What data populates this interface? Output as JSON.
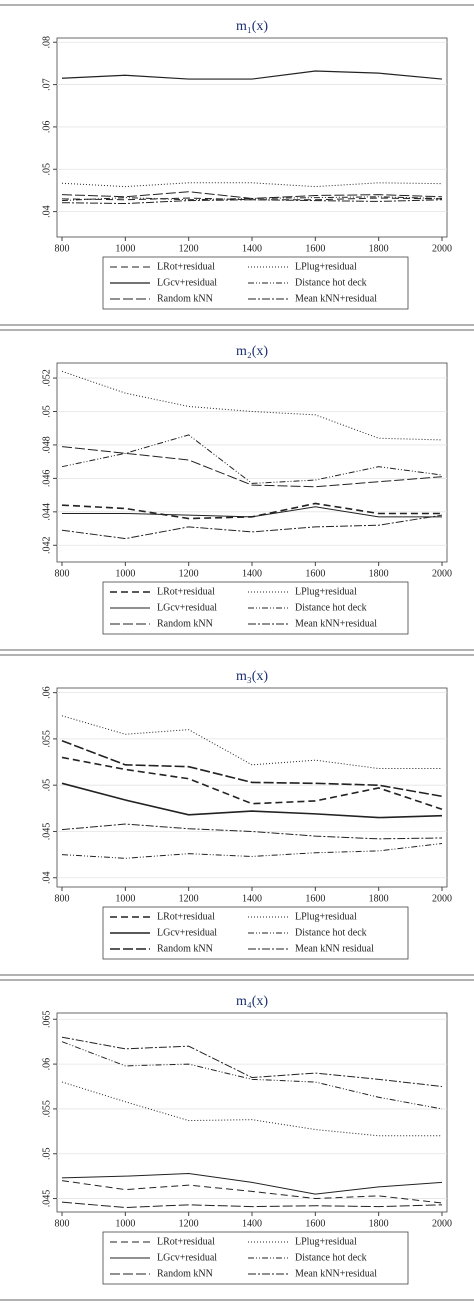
{
  "chart_data": [
    {
      "type": "line",
      "title": "m₁(x)",
      "x": [
        800,
        1000,
        1200,
        1400,
        1600,
        1800,
        2000
      ],
      "xlim": [
        800,
        2000
      ],
      "xticks": [
        800,
        1000,
        1200,
        1400,
        1600,
        1800,
        2000
      ],
      "ylim": [
        0.034,
        0.081
      ],
      "yticks": [
        {
          "value": 0.04,
          "label": ".04"
        },
        {
          "value": 0.05,
          "label": ".05"
        },
        {
          "value": 0.06,
          "label": ".06"
        },
        {
          "value": 0.07,
          "label": ".07"
        },
        {
          "value": 0.08,
          "label": ".08"
        }
      ],
      "grid": true,
      "series": [
        {
          "name": "LRot+residual",
          "color": "#222",
          "dash": "7,4",
          "width": 1,
          "values": [
            0.043,
            0.0428,
            0.0432,
            0.0428,
            0.0428,
            0.0432,
            0.043
          ]
        },
        {
          "name": "LPlug+residual",
          "color": "#222",
          "dash": "1,2",
          "width": 1,
          "values": [
            0.0467,
            0.0459,
            0.0468,
            0.0468,
            0.0459,
            0.0468,
            0.0466
          ]
        },
        {
          "name": "LGcv+residual",
          "color": "#222",
          "dash": "",
          "width": 1.2,
          "values": [
            0.0715,
            0.0722,
            0.0713,
            0.0713,
            0.0732,
            0.0727,
            0.0713
          ]
        },
        {
          "name": "Distance hot deck",
          "color": "#222",
          "dash": "6,2,1,2,1,2",
          "width": 1,
          "values": [
            0.0426,
            0.0433,
            0.0428,
            0.0431,
            0.0433,
            0.0435,
            0.0431
          ]
        },
        {
          "name": "Random kNN",
          "color": "#222",
          "dash": "10,3",
          "width": 1,
          "values": [
            0.044,
            0.0435,
            0.0447,
            0.0431,
            0.0438,
            0.044,
            0.0435
          ]
        },
        {
          "name": "Mean kNN+residual",
          "color": "#222",
          "dash": "8,2,2,2",
          "width": 1,
          "values": [
            0.0421,
            0.0419,
            0.0426,
            0.0428,
            0.0426,
            0.0424,
            0.0428
          ]
        }
      ]
    },
    {
      "type": "line",
      "title": "m₂(x)",
      "x": [
        800,
        1000,
        1200,
        1400,
        1600,
        1800,
        2000
      ],
      "xlim": [
        800,
        2000
      ],
      "xticks": [
        800,
        1000,
        1200,
        1400,
        1600,
        1800,
        2000
      ],
      "ylim": [
        0.041,
        0.0529
      ],
      "yticks": [
        {
          "value": 0.042,
          "label": ".042"
        },
        {
          "value": 0.044,
          "label": ".044"
        },
        {
          "value": 0.046,
          "label": ".046"
        },
        {
          "value": 0.048,
          "label": ".048"
        },
        {
          "value": 0.05,
          "label": ".05"
        },
        {
          "value": 0.052,
          "label": ".052"
        }
      ],
      "grid": true,
      "series": [
        {
          "name": "LRot+residual",
          "color": "#222",
          "dash": "7,4",
          "width": 1.6,
          "values": [
            0.0444,
            0.0442,
            0.0436,
            0.0437,
            0.0445,
            0.0439,
            0.0439
          ]
        },
        {
          "name": "LPlug+residual",
          "color": "#222",
          "dash": "1,2",
          "width": 1,
          "values": [
            0.0524,
            0.0511,
            0.0503,
            0.05,
            0.0498,
            0.0484,
            0.0483
          ]
        },
        {
          "name": "LGcv+residual",
          "color": "#222",
          "dash": "",
          "width": 1,
          "values": [
            0.0439,
            0.0439,
            0.0438,
            0.0437,
            0.0443,
            0.0437,
            0.0437
          ]
        },
        {
          "name": "Distance hot deck",
          "color": "#222",
          "dash": "6,2,1,2,1,2",
          "width": 1,
          "values": [
            0.0467,
            0.0475,
            0.0486,
            0.0457,
            0.0459,
            0.0467,
            0.0462
          ]
        },
        {
          "name": "Random kNN",
          "color": "#222",
          "dash": "10,3",
          "width": 1,
          "values": [
            0.0479,
            0.0475,
            0.0471,
            0.0456,
            0.0455,
            0.0458,
            0.0461
          ]
        },
        {
          "name": "Mean kNN+residual",
          "color": "#222",
          "dash": "8,2,2,2",
          "width": 1,
          "values": [
            0.0429,
            0.0424,
            0.0431,
            0.0428,
            0.0431,
            0.0432,
            0.0438
          ]
        }
      ]
    },
    {
      "type": "line",
      "title": "m₃(x)",
      "x": [
        800,
        1000,
        1200,
        1400,
        1600,
        1800,
        2000
      ],
      "xlim": [
        800,
        2000
      ],
      "xticks": [
        800,
        1000,
        1200,
        1400,
        1600,
        1800,
        2000
      ],
      "ylim": [
        0.039,
        0.0605
      ],
      "yticks": [
        {
          "value": 0.04,
          "label": ".04"
        },
        {
          "value": 0.045,
          "label": ".045"
        },
        {
          "value": 0.05,
          "label": ".05"
        },
        {
          "value": 0.055,
          "label": ".055"
        },
        {
          "value": 0.06,
          "label": ".06"
        }
      ],
      "grid": true,
      "series": [
        {
          "name": "LRot+residual",
          "color": "#222",
          "dash": "7,4",
          "width": 1.6,
          "values": [
            0.053,
            0.0517,
            0.0507,
            0.048,
            0.0483,
            0.0497,
            0.0474
          ]
        },
        {
          "name": "LPlug+residual",
          "color": "#222",
          "dash": "1,2",
          "width": 1,
          "values": [
            0.0575,
            0.0555,
            0.056,
            0.0522,
            0.0527,
            0.0518,
            0.0518
          ]
        },
        {
          "name": "LGcv+residual",
          "color": "#222",
          "dash": "",
          "width": 1.6,
          "values": [
            0.0502,
            0.0484,
            0.0468,
            0.0472,
            0.0469,
            0.0465,
            0.0467
          ]
        },
        {
          "name": "Distance hot deck",
          "color": "#222",
          "dash": "6,2,1,2,1,2",
          "width": 1,
          "values": [
            0.0425,
            0.0421,
            0.0426,
            0.0423,
            0.0427,
            0.0429,
            0.0437
          ]
        },
        {
          "name": "Random kNN",
          "color": "#222",
          "dash": "10,3",
          "width": 1.6,
          "values": [
            0.0548,
            0.0522,
            0.052,
            0.0503,
            0.0502,
            0.05,
            0.0488
          ]
        },
        {
          "name": "Mean kNN residual",
          "color": "#222",
          "dash": "8,2,2,2",
          "width": 1,
          "values": [
            0.0452,
            0.0458,
            0.0453,
            0.045,
            0.0445,
            0.0442,
            0.0443
          ]
        }
      ]
    },
    {
      "type": "line",
      "title": "m₄(x)",
      "x": [
        800,
        1000,
        1200,
        1400,
        1600,
        1800,
        2000
      ],
      "xlim": [
        800,
        2000
      ],
      "xticks": [
        800,
        1000,
        1200,
        1400,
        1600,
        1800,
        2000
      ],
      "ylim": [
        0.0435,
        0.0657
      ],
      "yticks": [
        {
          "value": 0.045,
          "label": ".045"
        },
        {
          "value": 0.05,
          "label": ".05"
        },
        {
          "value": 0.055,
          "label": ".055"
        },
        {
          "value": 0.06,
          "label": ".06"
        },
        {
          "value": 0.065,
          "label": ".065"
        }
      ],
      "grid": true,
      "series": [
        {
          "name": "LRot+residual",
          "color": "#222",
          "dash": "7,4",
          "width": 1,
          "values": [
            0.047,
            0.046,
            0.0465,
            0.0458,
            0.045,
            0.0453,
            0.0445
          ]
        },
        {
          "name": "LPlug+residual",
          "color": "#222",
          "dash": "1,2",
          "width": 1,
          "values": [
            0.058,
            0.0558,
            0.0537,
            0.0538,
            0.0527,
            0.052,
            0.052
          ]
        },
        {
          "name": "LGcv+residual",
          "color": "#222",
          "dash": "",
          "width": 1,
          "values": [
            0.0473,
            0.0475,
            0.0478,
            0.0468,
            0.0455,
            0.0463,
            0.0468
          ]
        },
        {
          "name": "Distance hot deck",
          "color": "#222",
          "dash": "6,2,1,2,1,2",
          "width": 1,
          "values": [
            0.0625,
            0.0598,
            0.06,
            0.0583,
            0.058,
            0.0563,
            0.055
          ]
        },
        {
          "name": "Random kNN",
          "color": "#222",
          "dash": "10,3",
          "width": 1,
          "values": [
            0.0446,
            0.044,
            0.0443,
            0.0441,
            0.0442,
            0.0441,
            0.0443
          ]
        },
        {
          "name": "Mean kNN+residual",
          "color": "#222",
          "dash": "8,2,2,2",
          "width": 1,
          "values": [
            0.063,
            0.0617,
            0.062,
            0.0585,
            0.059,
            0.0583,
            0.0575
          ]
        }
      ]
    }
  ]
}
